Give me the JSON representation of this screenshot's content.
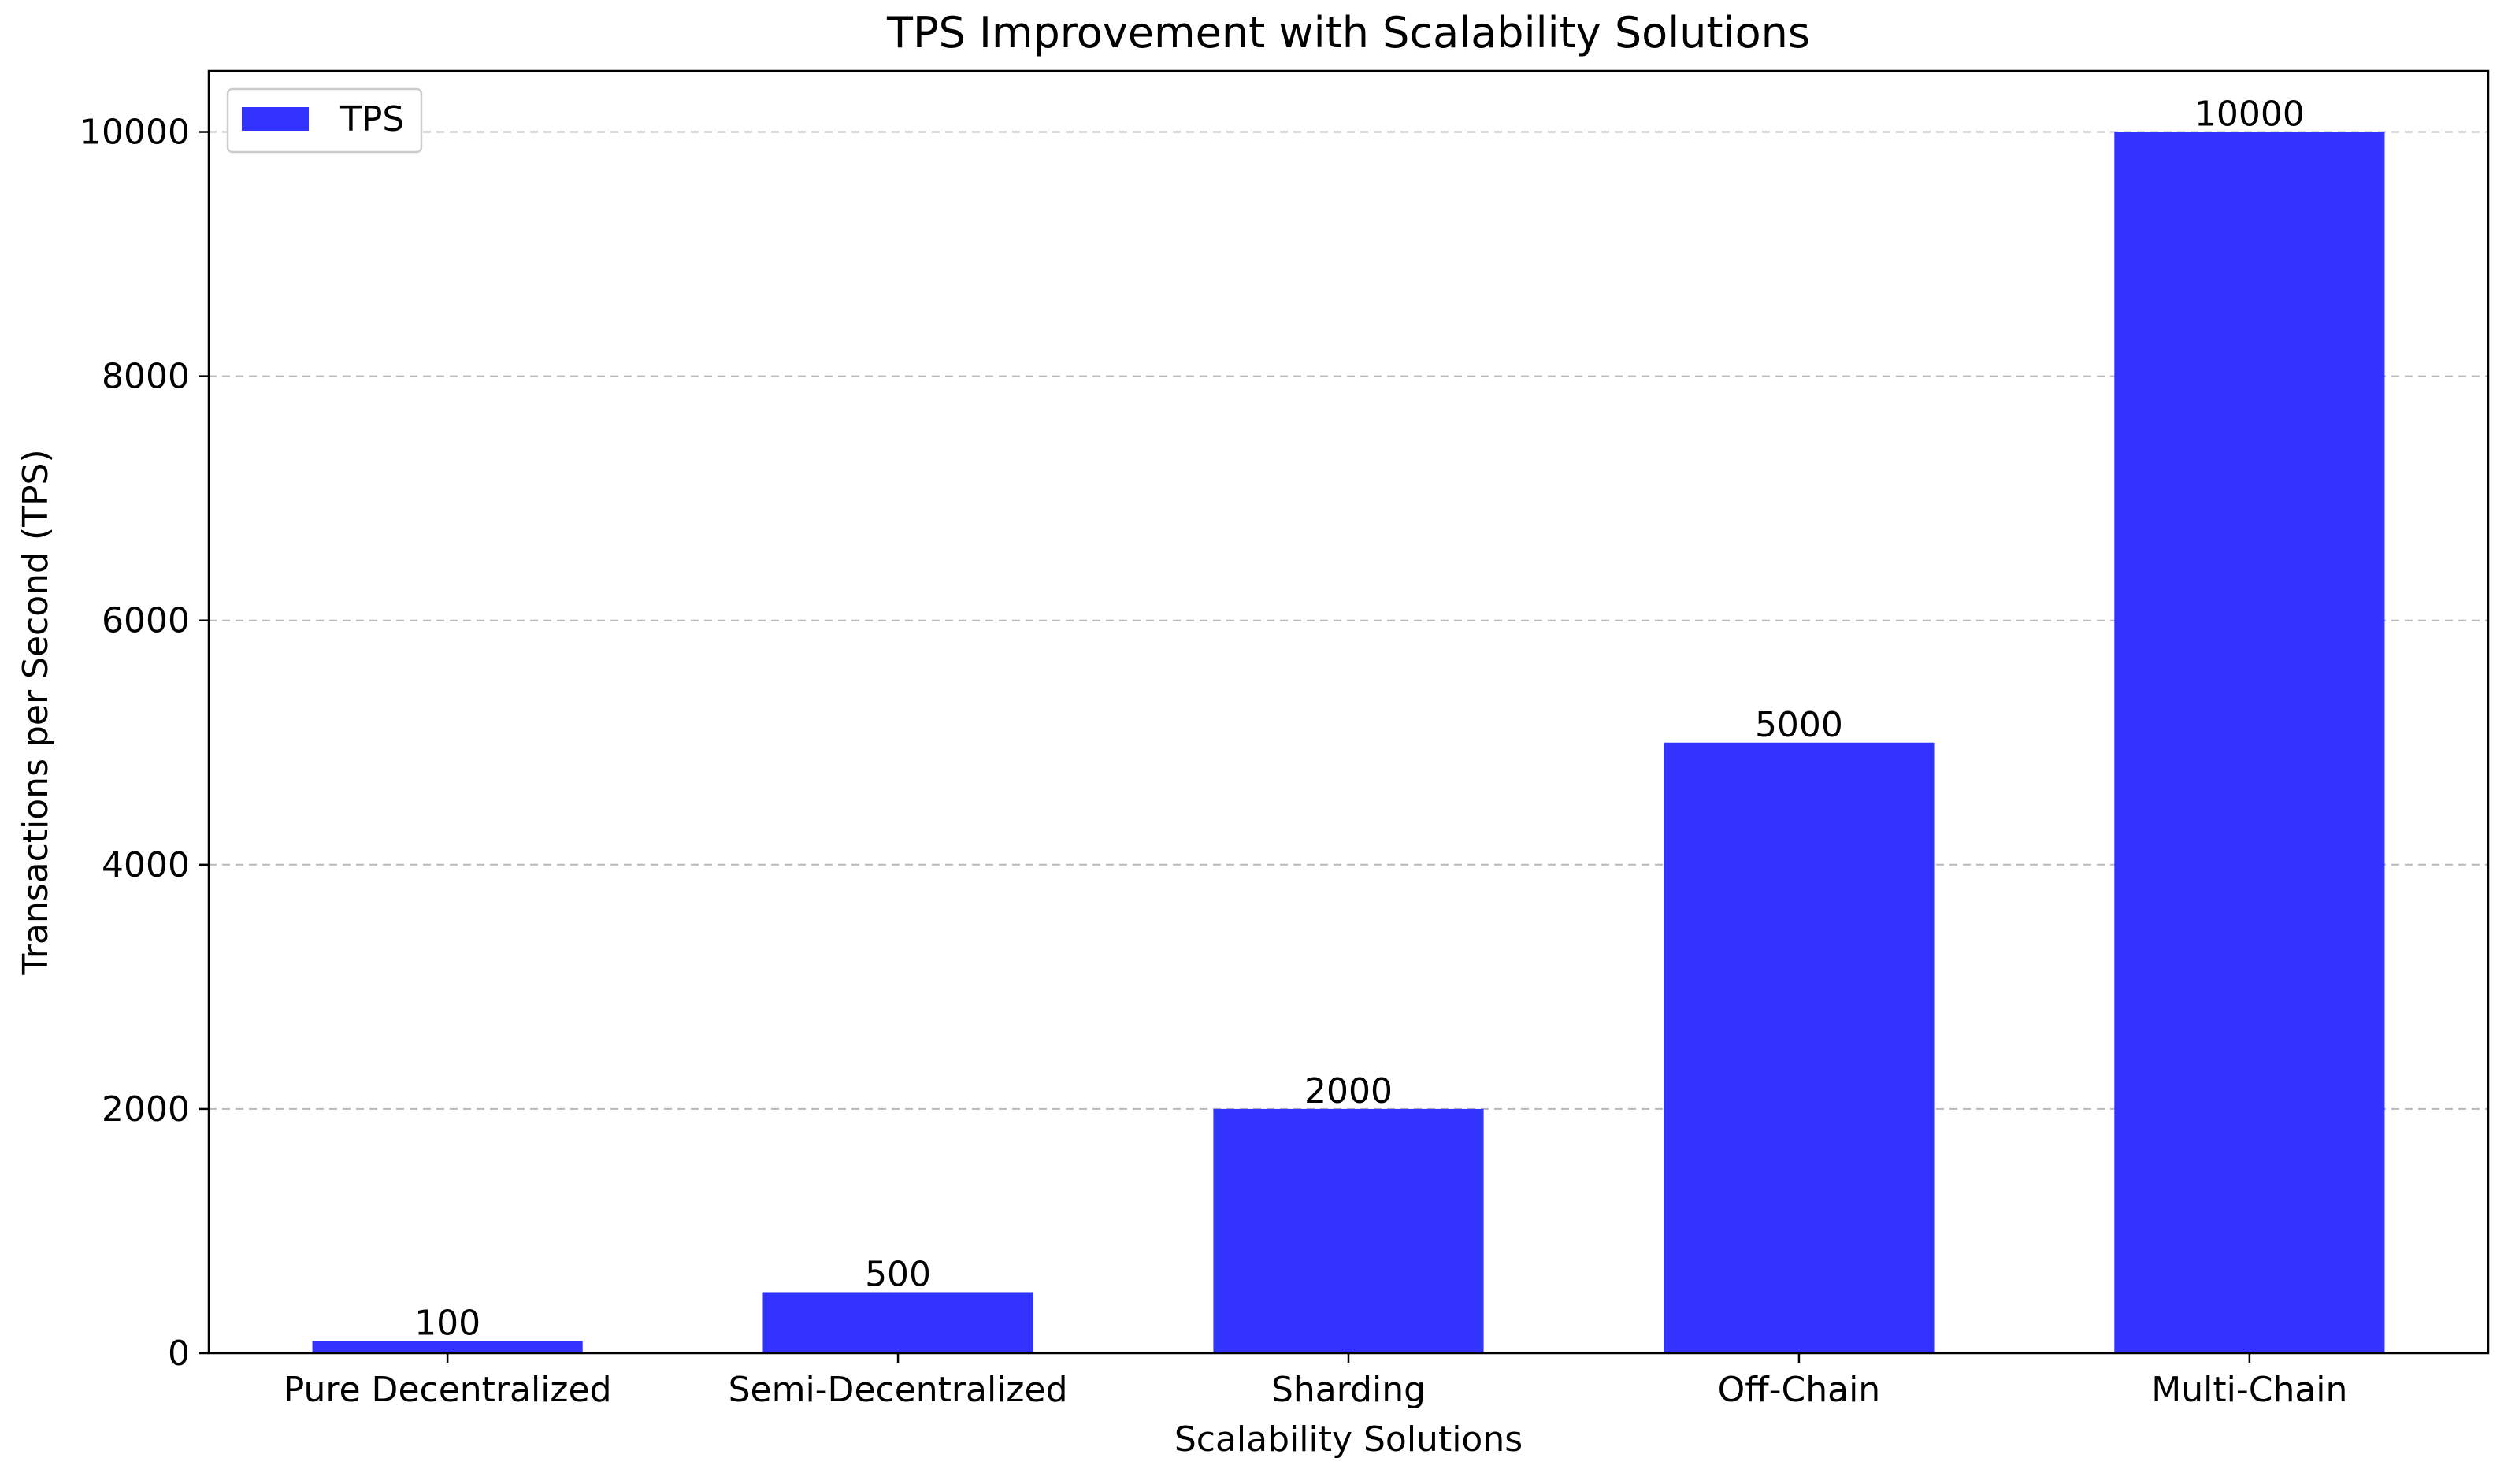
{
  "chart_data": {
    "type": "bar",
    "title": "TPS Improvement with Scalability Solutions",
    "xlabel": "Scalability Solutions",
    "ylabel": "Transactions per Second (TPS)",
    "categories": [
      "Pure Decentralized",
      "Semi-Decentralized",
      "Sharding",
      "Off-Chain",
      "Multi-Chain"
    ],
    "series": [
      {
        "name": "TPS",
        "values": [
          100,
          500,
          2000,
          5000,
          10000
        ],
        "color": "#3333ff"
      }
    ],
    "data_labels": [
      "100",
      "500",
      "2000",
      "5000",
      "10000"
    ],
    "y_ticks": [
      0,
      2000,
      4000,
      6000,
      8000,
      10000
    ],
    "y_tick_labels": [
      "0",
      "2000",
      "4000",
      "6000",
      "8000",
      "10000"
    ],
    "ylim": [
      0,
      10500
    ],
    "grid": "y-dashed",
    "legend_position": "top-left"
  }
}
